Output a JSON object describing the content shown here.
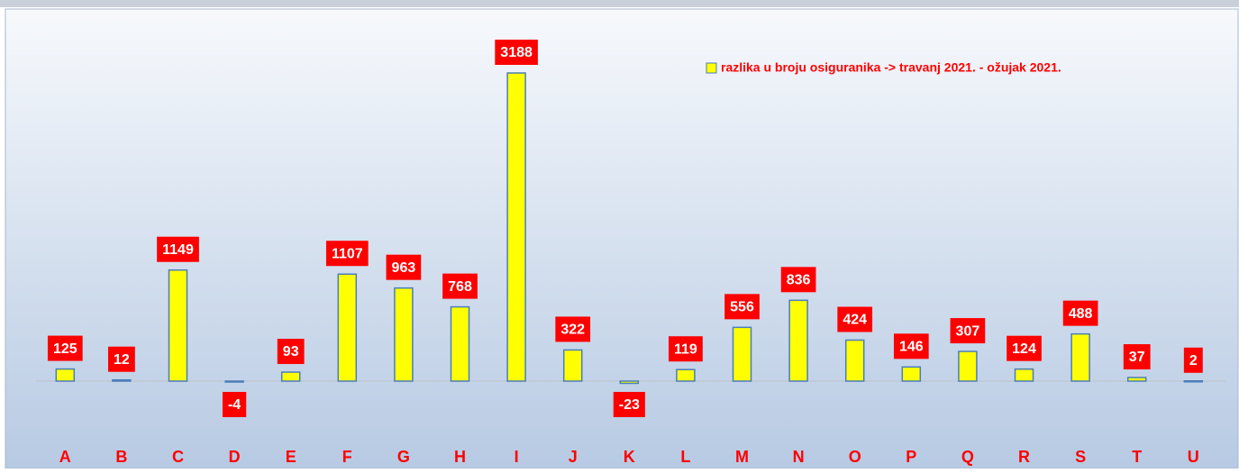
{
  "chart_data": {
    "type": "bar",
    "series": [
      {
        "name": "razlika u broju osiguranika -> travanj 2021. - ožujak 2021.",
        "color": "#ffff00",
        "values": [
          125,
          12,
          1149,
          -4,
          93,
          1107,
          963,
          768,
          3188,
          322,
          -23,
          119,
          556,
          836,
          424,
          146,
          307,
          124,
          488,
          37,
          2
        ]
      }
    ],
    "categories": [
      "A",
      "B",
      "C",
      "D",
      "E",
      "F",
      "G",
      "H",
      "I",
      "J",
      "K",
      "L",
      "M",
      "N",
      "O",
      "P",
      "Q",
      "R",
      "S",
      "T",
      "U"
    ],
    "legend": "top-right"
  }
}
